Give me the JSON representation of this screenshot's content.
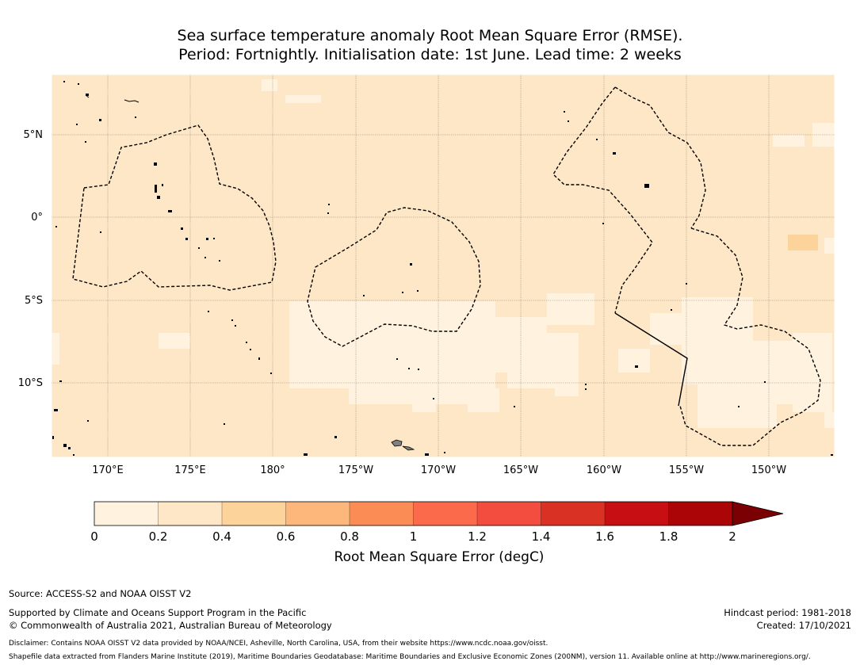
{
  "title_line1": "Sea surface temperature anomaly Root Mean Square Error (RMSE).",
  "title_line2": "Period: Fortnightly. Initialisation date: 1st June. Lead time: 2 weeks",
  "map": {
    "lat_labels": [
      "5°N",
      "0°",
      "5°S",
      "10°S"
    ],
    "lon_labels": [
      "170°E",
      "175°E",
      "180°",
      "175°W",
      "170°W",
      "165°W",
      "160°W",
      "155°W",
      "150°W"
    ],
    "colors": {
      "background_class": "#fee7c6",
      "low_class": "#fff2df",
      "mid_class": "#fdd39c",
      "land": "#808080"
    }
  },
  "colorbar": {
    "title": "Root Mean Square Error (degC)",
    "ticks": [
      "0",
      "0.2",
      "0.4",
      "0.6",
      "0.8",
      "1",
      "1.2",
      "1.4",
      "1.6",
      "1.8",
      "2"
    ],
    "colors": [
      "#fff2df",
      "#fee7c6",
      "#fdd39c",
      "#fdb77b",
      "#fc8c55",
      "#fb6b4b",
      "#f24d3e",
      "#d93224",
      "#c70e12",
      "#ab0508",
      "#7a0003"
    ]
  },
  "footer": {
    "source": "Source: ACCESS-S2 and NOAA OISST V2",
    "supported": "Supported by Climate and Oceans Support Program in the Pacific",
    "copyright": "© Commonwealth of Australia 2021, Australian Bureau of Meteorology",
    "hindcast": "Hindcast period: 1981-2018",
    "created": "Created: 17/10/2021",
    "disclaimer": "Disclaimer: Contains NOAA OISST V2 data provided by NOAA/NCEI, Asheville, North Carolina, USA, from their website https://www.ncdc.noaa.gov/oisst.",
    "shapefile": "Shapefile data extracted from Flanders Marine Institute (2019), Maritime Boundaries Geodatabase: Maritime Boundaries and Exclusive Economic Zones (200NM), version 11. Available online at http://www.marineregions.org/."
  }
}
